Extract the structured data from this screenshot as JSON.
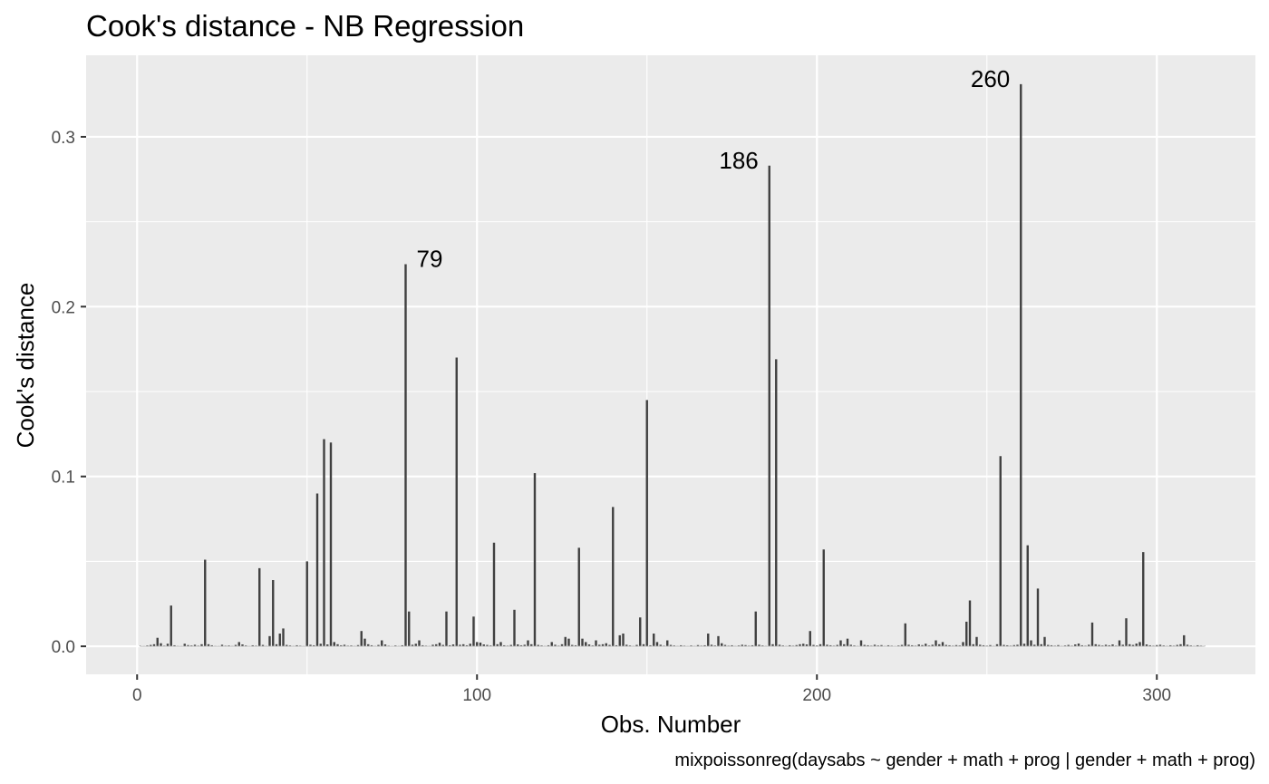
{
  "chart_data": {
    "type": "bar",
    "title": "Cook's distance - NB Regression",
    "xlabel": "Obs. Number",
    "ylabel": "Cook's distance",
    "caption": "mixpoissonreg(daysabs ~ gender + math + prog | gender + math + prog)",
    "xlim": [
      -15,
      329
    ],
    "ylim": [
      -0.0165,
      0.348
    ],
    "x_ticks": [
      0,
      100,
      200,
      300
    ],
    "y_ticks": [
      0.0,
      0.1,
      0.2,
      0.3
    ],
    "x_tick_labels": [
      "0",
      "100",
      "200",
      "300"
    ],
    "y_tick_labels": [
      "0.0",
      "0.1",
      "0.2",
      "0.3"
    ],
    "grid": true,
    "bar_color": "#404040",
    "panel_color": "#ebebeb",
    "annotations": [
      {
        "label": "79",
        "x": 79,
        "y": 0.225,
        "side": "right"
      },
      {
        "label": "186",
        "x": 186,
        "y": 0.283,
        "side": "left"
      },
      {
        "label": "260",
        "x": 260,
        "y": 0.331,
        "side": "left"
      }
    ],
    "points": [
      [
        1,
        0.0003
      ],
      [
        2,
        0.0002
      ],
      [
        3,
        0.0005
      ],
      [
        4,
        0.0008
      ],
      [
        5,
        0.0012
      ],
      [
        6,
        0.005
      ],
      [
        7,
        0.0018
      ],
      [
        8,
        0.0004
      ],
      [
        9,
        0.0015
      ],
      [
        10,
        0.024
      ],
      [
        11,
        0.0006
      ],
      [
        12,
        0.0003
      ],
      [
        13,
        0.0002
      ],
      [
        14,
        0.0015
      ],
      [
        15,
        0.0007
      ],
      [
        16,
        0.0005
      ],
      [
        17,
        0.0009
      ],
      [
        18,
        0.0004
      ],
      [
        19,
        0.0012
      ],
      [
        20,
        0.051
      ],
      [
        21,
        0.0012
      ],
      [
        22,
        0.0006
      ],
      [
        23,
        0.0003
      ],
      [
        24,
        0.0002
      ],
      [
        25,
        0.0009
      ],
      [
        26,
        0.0004
      ],
      [
        27,
        0.0005
      ],
      [
        28,
        0.0003
      ],
      [
        29,
        0.0008
      ],
      [
        30,
        0.0025
      ],
      [
        31,
        0.0011
      ],
      [
        32,
        0.0005
      ],
      [
        33,
        0.0002
      ],
      [
        34,
        0.0006
      ],
      [
        35,
        0.0004
      ],
      [
        36,
        0.046
      ],
      [
        37,
        0.0008
      ],
      [
        38,
        0.0003
      ],
      [
        39,
        0.006
      ],
      [
        40,
        0.039
      ],
      [
        41,
        0.0012
      ],
      [
        42,
        0.0075
      ],
      [
        43,
        0.0105
      ],
      [
        44,
        0.0008
      ],
      [
        45,
        0.0005
      ],
      [
        46,
        0.0003
      ],
      [
        47,
        0.0006
      ],
      [
        48,
        0.0004
      ],
      [
        49,
        0.0002
      ],
      [
        50,
        0.05
      ],
      [
        51,
        0.0009
      ],
      [
        52,
        0.0006
      ],
      [
        53,
        0.09
      ],
      [
        54,
        0.0015
      ],
      [
        55,
        0.122
      ],
      [
        56,
        0.0011
      ],
      [
        57,
        0.12
      ],
      [
        58,
        0.0025
      ],
      [
        59,
        0.0012
      ],
      [
        60,
        0.0006
      ],
      [
        61,
        0.0009
      ],
      [
        62,
        0.0004
      ],
      [
        63,
        0.0005
      ],
      [
        64,
        0.0003
      ],
      [
        65,
        0.0007
      ],
      [
        66,
        0.009
      ],
      [
        67,
        0.0045
      ],
      [
        68,
        0.0012
      ],
      [
        69,
        0.0006
      ],
      [
        70,
        0.0003
      ],
      [
        71,
        0.0008
      ],
      [
        72,
        0.0035
      ],
      [
        73,
        0.0011
      ],
      [
        74,
        0.0004
      ],
      [
        75,
        0.0002
      ],
      [
        76,
        0.0005
      ],
      [
        77,
        0.0003
      ],
      [
        78,
        0.0006
      ],
      [
        79,
        0.225
      ],
      [
        80,
        0.0205
      ],
      [
        81,
        0.0009
      ],
      [
        82,
        0.0015
      ],
      [
        83,
        0.0035
      ],
      [
        84,
        0.0006
      ],
      [
        85,
        0.0004
      ],
      [
        86,
        0.0003
      ],
      [
        87,
        0.0009
      ],
      [
        88,
        0.0012
      ],
      [
        89,
        0.0021
      ],
      [
        90,
        0.0008
      ],
      [
        91,
        0.0205
      ],
      [
        92,
        0.0006
      ],
      [
        93,
        0.0011
      ],
      [
        94,
        0.17
      ],
      [
        95,
        0.0009
      ],
      [
        96,
        0.0012
      ],
      [
        97,
        0.0006
      ],
      [
        98,
        0.0015
      ],
      [
        99,
        0.0175
      ],
      [
        100,
        0.0025
      ],
      [
        101,
        0.0022
      ],
      [
        102,
        0.0011
      ],
      [
        103,
        0.0008
      ],
      [
        104,
        0.0005
      ],
      [
        105,
        0.061
      ],
      [
        106,
        0.0012
      ],
      [
        107,
        0.0025
      ],
      [
        108,
        0.0006
      ],
      [
        109,
        0.0004
      ],
      [
        110,
        0.0008
      ],
      [
        111,
        0.0215
      ],
      [
        112,
        0.0011
      ],
      [
        113,
        0.0006
      ],
      [
        114,
        0.0009
      ],
      [
        115,
        0.0035
      ],
      [
        116,
        0.0012
      ],
      [
        117,
        0.102
      ],
      [
        118,
        0.0008
      ],
      [
        119,
        0.0005
      ],
      [
        120,
        0.0003
      ],
      [
        121,
        0.0006
      ],
      [
        122,
        0.0025
      ],
      [
        123,
        0.0009
      ],
      [
        124,
        0.0004
      ],
      [
        125,
        0.0012
      ],
      [
        126,
        0.0055
      ],
      [
        127,
        0.0045
      ],
      [
        128,
        0.0008
      ],
      [
        129,
        0.0006
      ],
      [
        130,
        0.058
      ],
      [
        131,
        0.0045
      ],
      [
        132,
        0.0025
      ],
      [
        133,
        0.0011
      ],
      [
        134,
        0.0005
      ],
      [
        135,
        0.0035
      ],
      [
        136,
        0.0009
      ],
      [
        137,
        0.0012
      ],
      [
        138,
        0.0018
      ],
      [
        139,
        0.0008
      ],
      [
        140,
        0.082
      ],
      [
        141,
        0.0006
      ],
      [
        142,
        0.0065
      ],
      [
        143,
        0.0075
      ],
      [
        144,
        0.0009
      ],
      [
        145,
        0.0005
      ],
      [
        146,
        0.0003
      ],
      [
        147,
        0.0008
      ],
      [
        148,
        0.017
      ],
      [
        149,
        0.0012
      ],
      [
        150,
        0.145
      ],
      [
        151,
        0.0006
      ],
      [
        152,
        0.0075
      ],
      [
        153,
        0.0025
      ],
      [
        154,
        0.0009
      ],
      [
        155,
        0.0004
      ],
      [
        156,
        0.0035
      ],
      [
        157,
        0.0008
      ],
      [
        158,
        0.0005
      ],
      [
        159,
        0.0003
      ],
      [
        160,
        0.0006
      ],
      [
        161,
        0.0004
      ],
      [
        162,
        0.0002
      ],
      [
        163,
        0.0005
      ],
      [
        164,
        0.0003
      ],
      [
        165,
        0.0007
      ],
      [
        166,
        0.0004
      ],
      [
        167,
        0.0006
      ],
      [
        168,
        0.0075
      ],
      [
        169,
        0.0009
      ],
      [
        170,
        0.0005
      ],
      [
        171,
        0.006
      ],
      [
        172,
        0.0018
      ],
      [
        173,
        0.0008
      ],
      [
        174,
        0.0004
      ],
      [
        175,
        0.0006
      ],
      [
        176,
        0.0003
      ],
      [
        177,
        0.0005
      ],
      [
        178,
        0.0009
      ],
      [
        179,
        0.0007
      ],
      [
        180,
        0.0004
      ],
      [
        181,
        0.0006
      ],
      [
        182,
        0.0205
      ],
      [
        183,
        0.0009
      ],
      [
        184,
        0.0005
      ],
      [
        185,
        0.0003
      ],
      [
        186,
        0.283
      ],
      [
        187,
        0.0012
      ],
      [
        188,
        0.169
      ],
      [
        189,
        0.0009
      ],
      [
        190,
        0.0005
      ],
      [
        191,
        0.0003
      ],
      [
        192,
        0.0006
      ],
      [
        193,
        0.0004
      ],
      [
        194,
        0.0007
      ],
      [
        195,
        0.0012
      ],
      [
        196,
        0.0015
      ],
      [
        197,
        0.0011
      ],
      [
        198,
        0.009
      ],
      [
        199,
        0.0008
      ],
      [
        200,
        0.0005
      ],
      [
        201,
        0.0012
      ],
      [
        202,
        0.057
      ],
      [
        203,
        0.0009
      ],
      [
        204,
        0.0006
      ],
      [
        205,
        0.0004
      ],
      [
        206,
        0.0008
      ],
      [
        207,
        0.0035
      ],
      [
        208,
        0.0012
      ],
      [
        209,
        0.0045
      ],
      [
        210,
        0.0009
      ],
      [
        211,
        0.0005
      ],
      [
        212,
        0.0003
      ],
      [
        213,
        0.0035
      ],
      [
        214,
        0.0008
      ],
      [
        215,
        0.0006
      ],
      [
        216,
        0.0004
      ],
      [
        217,
        0.0009
      ],
      [
        218,
        0.0005
      ],
      [
        219,
        0.0007
      ],
      [
        220,
        0.0003
      ],
      [
        221,
        0.0006
      ],
      [
        222,
        0.0004
      ],
      [
        223,
        0.0002
      ],
      [
        224,
        0.0005
      ],
      [
        225,
        0.0008
      ],
      [
        226,
        0.0135
      ],
      [
        227,
        0.0009
      ],
      [
        228,
        0.0006
      ],
      [
        229,
        0.0004
      ],
      [
        230,
        0.0011
      ],
      [
        231,
        0.0007
      ],
      [
        232,
        0.0015
      ],
      [
        233,
        0.0005
      ],
      [
        234,
        0.0009
      ],
      [
        235,
        0.0035
      ],
      [
        236,
        0.0012
      ],
      [
        237,
        0.0025
      ],
      [
        238,
        0.0008
      ],
      [
        239,
        0.0006
      ],
      [
        240,
        0.0004
      ],
      [
        241,
        0.0007
      ],
      [
        242,
        0.0005
      ],
      [
        243,
        0.0025
      ],
      [
        244,
        0.0145
      ],
      [
        245,
        0.027
      ],
      [
        246,
        0.0012
      ],
      [
        247,
        0.0055
      ],
      [
        248,
        0.0009
      ],
      [
        249,
        0.0006
      ],
      [
        250,
        0.0004
      ],
      [
        251,
        0.0007
      ],
      [
        252,
        0.0003
      ],
      [
        253,
        0.0012
      ],
      [
        254,
        0.112
      ],
      [
        255,
        0.0008
      ],
      [
        256,
        0.0006
      ],
      [
        257,
        0.0004
      ],
      [
        258,
        0.0007
      ],
      [
        259,
        0.0009
      ],
      [
        260,
        0.331
      ],
      [
        261,
        0.0015
      ],
      [
        262,
        0.0595
      ],
      [
        263,
        0.0035
      ],
      [
        264,
        0.0009
      ],
      [
        265,
        0.034
      ],
      [
        266,
        0.0012
      ],
      [
        267,
        0.0055
      ],
      [
        268,
        0.0008
      ],
      [
        269,
        0.0006
      ],
      [
        270,
        0.0004
      ],
      [
        271,
        0.0007
      ],
      [
        272,
        0.0003
      ],
      [
        273,
        0.0005
      ],
      [
        274,
        0.0008
      ],
      [
        275,
        0.0004
      ],
      [
        276,
        0.0011
      ],
      [
        277,
        0.0016
      ],
      [
        278,
        0.0006
      ],
      [
        279,
        0.0004
      ],
      [
        280,
        0.0009
      ],
      [
        281,
        0.014
      ],
      [
        282,
        0.0012
      ],
      [
        283,
        0.0008
      ],
      [
        284,
        0.0005
      ],
      [
        285,
        0.0009
      ],
      [
        286,
        0.0006
      ],
      [
        287,
        0.0011
      ],
      [
        288,
        0.0004
      ],
      [
        289,
        0.0035
      ],
      [
        290,
        0.0009
      ],
      [
        291,
        0.0165
      ],
      [
        292,
        0.0012
      ],
      [
        293,
        0.0008
      ],
      [
        294,
        0.0016
      ],
      [
        295,
        0.0025
      ],
      [
        296,
        0.0555
      ],
      [
        297,
        0.0011
      ],
      [
        298,
        0.0006
      ],
      [
        299,
        0.0004
      ],
      [
        300,
        0.0007
      ],
      [
        301,
        0.0009
      ],
      [
        302,
        0.0005
      ],
      [
        303,
        0.0003
      ],
      [
        304,
        0.0006
      ],
      [
        305,
        0.0004
      ],
      [
        306,
        0.0008
      ],
      [
        307,
        0.0012
      ],
      [
        308,
        0.0065
      ],
      [
        309,
        0.0009
      ],
      [
        310,
        0.0005
      ],
      [
        311,
        0.0003
      ],
      [
        312,
        0.0006
      ],
      [
        313,
        0.0004
      ],
      [
        314,
        0.0002
      ]
    ]
  }
}
